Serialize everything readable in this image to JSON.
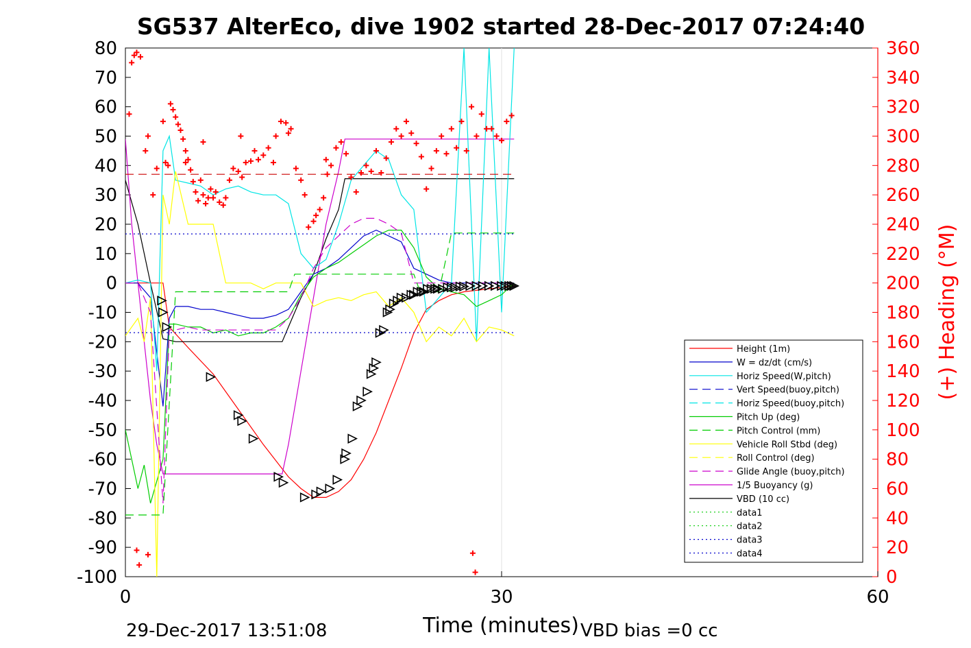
{
  "chart_data": {
    "type": "line",
    "title": "SG537 AlterEco, dive 1902 started 28-Dec-2017 07:24:40",
    "xlabel": "Time (minutes)",
    "ylabel_right": "(+) Heading (°M)",
    "xlim": [
      0,
      60
    ],
    "ylim": [
      -100,
      80
    ],
    "ylim_right": [
      0,
      360
    ],
    "xticks": [
      "0",
      "30",
      "60"
    ],
    "yticks": [
      "80",
      "70",
      "60",
      "50",
      "40",
      "30",
      "20",
      "10",
      "0",
      "-10",
      "-20",
      "-30",
      "-40",
      "-50",
      "-60",
      "-70",
      "-80",
      "-90",
      "-100"
    ],
    "yticks_right": [
      "360",
      "340",
      "320",
      "300",
      "280",
      "260",
      "240",
      "220",
      "200",
      "180",
      "160",
      "140",
      "120",
      "100",
      "80",
      "60",
      "40",
      "20",
      "0"
    ],
    "grid": "x at 30",
    "legend_position": "lower-right",
    "footer_left": "29-Dec-2017 13:51:08",
    "footer_right": "VBD bias =0 cc",
    "colors": {
      "height": "#ff0000",
      "w": "#0000cc",
      "horiz": "#00e5e5",
      "pitch": "#00cc00",
      "roll": "#ffff00",
      "glide": "#cc00cc",
      "buoy": "#cc00cc",
      "vbd": "#000000",
      "heading": "#ff0000",
      "axis_right": "#ff0000"
    },
    "legend": [
      {
        "label": "Height (1m)",
        "color": "#ff0000",
        "dash": "solid"
      },
      {
        "label": "W = dz/dt (cm/s)",
        "color": "#0000cc",
        "dash": "solid"
      },
      {
        "label": "Horiz Speed(W,pitch)",
        "color": "#00e5e5",
        "dash": "solid"
      },
      {
        "label": "Vert Speed(buoy,pitch)",
        "color": "#0000cc",
        "dash": "dashed"
      },
      {
        "label": "Horiz Speed(buoy,pitch)",
        "color": "#00e5e5",
        "dash": "dashed"
      },
      {
        "label": "Pitch Up (deg)",
        "color": "#00cc00",
        "dash": "solid"
      },
      {
        "label": "Pitch Control (mm)",
        "color": "#00cc00",
        "dash": "dashed"
      },
      {
        "label": "Vehicle Roll Stbd (deg)",
        "color": "#ffff00",
        "dash": "solid"
      },
      {
        "label": "Roll Control (deg)",
        "color": "#ffff00",
        "dash": "dashed"
      },
      {
        "label": "Glide Angle (buoy,pitch)",
        "color": "#cc00cc",
        "dash": "dashed"
      },
      {
        "label": "1/5 Buoyancy (g)",
        "color": "#cc00cc",
        "dash": "solid"
      },
      {
        "label": "VBD (10 cc)",
        "color": "#000000",
        "dash": "solid"
      },
      {
        "label": "data1",
        "color": "#00cc00",
        "dash": "dotted"
      },
      {
        "label": "data2",
        "color": "#00cc00",
        "dash": "dotted"
      },
      {
        "label": "data3",
        "color": "#0000cc",
        "dash": "dotted"
      },
      {
        "label": "data4",
        "color": "#0000cc",
        "dash": "dotted"
      }
    ],
    "series": [
      {
        "key": "height",
        "name": "Height (1m)",
        "dash": "solid",
        "x": [
          0,
          1,
          2,
          3,
          3.5,
          5,
          7,
          9,
          11,
          13,
          14,
          15,
          16,
          17,
          18,
          19,
          20,
          21,
          22,
          23,
          24,
          25,
          26,
          27,
          28,
          29,
          30,
          31
        ],
        "y": [
          0,
          0,
          0,
          0,
          -15,
          -22,
          -31,
          -43,
          -55,
          -66,
          -70,
          -73,
          -73,
          -71,
          -67,
          -60,
          -51,
          -40,
          -29,
          -17,
          -9,
          -6,
          -4,
          -3,
          -2.5,
          -2,
          -1.5,
          -1
        ]
      },
      {
        "key": "vbd",
        "name": "VBD (10 cc)",
        "dash": "solid",
        "x": [
          0,
          1,
          2,
          3,
          4,
          5,
          10,
          12.5,
          13,
          14,
          15,
          16,
          17,
          17.5,
          25,
          30,
          31
        ],
        "y": [
          35,
          20,
          0,
          -19,
          -20,
          -20,
          -20,
          -20,
          -15,
          -5,
          3,
          15,
          25,
          35.5,
          35.5,
          35.5,
          35.5
        ]
      },
      {
        "key": "buoy",
        "name": "1/5 Buoyancy (g)",
        "dash": "solid",
        "x": [
          0,
          0.5,
          1,
          1.5,
          2,
          2.5,
          3,
          3.3,
          4,
          10,
          12.5,
          13,
          14,
          15,
          16,
          17,
          17.5,
          24,
          30,
          31
        ],
        "y": [
          49,
          20,
          0,
          -20,
          -40,
          -55,
          -65,
          -65,
          -65,
          -65,
          -65,
          -55,
          -30,
          -5,
          20,
          38,
          49,
          49,
          49,
          49
        ]
      },
      {
        "key": "w",
        "name": "W = dz/dt (cm/s)",
        "dash": "solid",
        "x": [
          0,
          1,
          2,
          3,
          3.5,
          4,
          5,
          6,
          7,
          8,
          9,
          10,
          11,
          12,
          13,
          14,
          15,
          16,
          17,
          18,
          19,
          20,
          21,
          22,
          23,
          24,
          25,
          26,
          27,
          28,
          29,
          30,
          31
        ],
        "y": [
          0,
          0,
          -5,
          -42,
          -12,
          -8,
          -8,
          -9,
          -9,
          -10,
          -11,
          -12,
          -12,
          -11,
          -9,
          -3,
          3,
          5,
          8,
          12,
          16,
          18,
          16,
          14,
          5,
          3,
          1,
          0,
          0,
          0,
          0,
          0,
          0
        ]
      },
      {
        "key": "horiz",
        "name": "Horiz Speed(W,pitch)",
        "dash": "solid",
        "x": [
          0,
          1,
          2,
          2.5,
          3,
          3.5,
          4,
          5,
          6,
          7,
          8,
          9,
          10,
          11,
          12,
          13,
          14,
          15,
          16,
          17,
          18,
          19,
          20,
          21,
          22,
          23,
          24,
          25,
          26,
          27,
          28,
          29,
          30,
          31
        ],
        "y": [
          0,
          1,
          0,
          -30,
          45,
          50,
          35,
          34,
          33,
          30,
          32,
          33,
          31,
          30,
          30,
          27,
          10,
          5,
          8,
          20,
          35,
          40,
          45,
          42,
          30,
          25,
          -10,
          -5,
          0,
          80,
          -20,
          80,
          -10,
          80
        ]
      },
      {
        "key": "pitch",
        "name": "Pitch Up (deg)",
        "dash": "solid",
        "x": [
          0,
          1,
          1.5,
          2,
          3,
          3.5,
          4,
          5,
          6,
          7,
          8,
          9,
          10,
          11,
          12,
          13,
          14,
          15,
          16,
          17,
          18,
          19,
          20,
          21,
          22,
          23,
          24,
          25,
          26,
          27,
          28,
          29,
          30,
          31
        ],
        "y": [
          -50,
          -70,
          -62,
          -75,
          -60,
          -14,
          -14,
          -15,
          -15,
          -17,
          -16,
          -18,
          -17,
          -17,
          -15,
          -12,
          -4,
          2,
          5,
          7,
          10,
          13,
          16,
          18,
          18,
          12,
          2,
          -2,
          -3,
          -4,
          -8,
          -6,
          -4,
          0
        ]
      },
      {
        "key": "roll",
        "name": "Vehicle Roll Stbd (deg)",
        "dash": "solid",
        "x": [
          0,
          1,
          1.5,
          2,
          2.5,
          3,
          3.5,
          4,
          5,
          6,
          7,
          8,
          9,
          10,
          11,
          12,
          13,
          14,
          15,
          16,
          17,
          18,
          19,
          20,
          21,
          22,
          23,
          24,
          25,
          26,
          27,
          28,
          29,
          30,
          31
        ],
        "y": [
          -18,
          -12,
          -20,
          -5,
          -100,
          30,
          20,
          38,
          20,
          20,
          20,
          0,
          0,
          0,
          -2,
          0,
          0,
          0,
          -8,
          -6,
          -5,
          -6,
          -4,
          -3,
          -8,
          -5,
          -10,
          -20,
          -15,
          -18,
          -12,
          -20,
          -15,
          -16,
          -18
        ]
      },
      {
        "key": "glide",
        "name": "Glide Angle (buoy,pitch)",
        "dash": "dashed",
        "x": [
          0,
          1,
          2,
          3,
          3.5,
          4,
          5,
          6,
          7,
          8,
          9,
          10,
          11,
          12,
          13,
          14,
          15,
          16,
          17,
          18,
          19,
          20,
          21,
          22,
          23,
          24,
          25,
          26,
          27,
          28,
          29,
          30,
          31
        ],
        "y": [
          0,
          0,
          -10,
          -75,
          -16,
          -16,
          -15,
          -16,
          -16,
          -16,
          -16,
          -16,
          -16,
          -16,
          -12,
          -5,
          5,
          12,
          16,
          20,
          22,
          22,
          20,
          17,
          0,
          0,
          0,
          0,
          0,
          0,
          0,
          0,
          0
        ]
      },
      {
        "key": "pitchctl",
        "name": "Pitch Control (mm)",
        "dash": "dashed",
        "x": [
          0,
          1,
          2,
          3,
          4,
          5,
          10,
          13,
          13.5,
          17,
          18,
          20,
          23,
          23.5,
          25,
          26,
          31
        ],
        "y": [
          -79,
          -79,
          -79,
          -79,
          -3,
          -3,
          -3,
          -3,
          3,
          3,
          3,
          3,
          3,
          -3,
          -3,
          17,
          17
        ]
      },
      {
        "key": "data3",
        "name": "data3",
        "dash": "dotted",
        "x": [
          0,
          31
        ],
        "y": [
          16.7,
          16.7
        ]
      },
      {
        "key": "data4",
        "name": "data4",
        "dash": "dotted",
        "x": [
          0,
          31
        ],
        "y": [
          -16.9,
          -16.9
        ]
      },
      {
        "key": "hdgref",
        "name": "",
        "dash": "dashed",
        "x": [
          0,
          31
        ],
        "y": [
          37,
          37
        ]
      }
    ],
    "heading_points": {
      "x": [
        0.3,
        0.5,
        0.7,
        0.9,
        1.2,
        1.6,
        1.8,
        2.2,
        2.5,
        3,
        3.2,
        3.4,
        3.6,
        3.8,
        4,
        4.2,
        4.4,
        4.6,
        4.8,
        5,
        5.2,
        5.4,
        5.6,
        5.8,
        6,
        6.2,
        6.4,
        6.6,
        6.8,
        7,
        7.2,
        7.5,
        7.8,
        8,
        8.3,
        8.6,
        9,
        9.3,
        9.6,
        10,
        10.3,
        10.6,
        11,
        11.4,
        11.8,
        12,
        12.4,
        12.8,
        13.2,
        13.6,
        14,
        14.3,
        14.6,
        15,
        15.2,
        15.5,
        15.8,
        16.1,
        16.4,
        16.8,
        17.2,
        17.6,
        18,
        18.4,
        18.8,
        19.2,
        19.6,
        20,
        20.4,
        20.8,
        21.2,
        21.6,
        22,
        22.4,
        22.8,
        23.2,
        23.6,
        24,
        24.4,
        24.8,
        25.2,
        25.6,
        26,
        26.4,
        26.8,
        27.2,
        27.6,
        28,
        28.4,
        28.8,
        29.2,
        29.6,
        30,
        30.4,
        30.8,
        0.9,
        1.1,
        1.8,
        27.7,
        27.9,
        4.8,
        6.2,
        9.2,
        13,
        16
      ],
      "y": [
        315,
        350,
        355,
        357,
        354,
        290,
        300,
        260,
        278,
        310,
        282,
        280,
        322,
        318,
        313,
        308,
        304,
        298,
        290,
        284,
        277,
        269,
        262,
        256,
        270,
        260,
        254,
        258,
        264,
        258,
        262,
        255,
        253,
        258,
        270,
        278,
        276,
        272,
        282,
        283,
        290,
        284,
        287,
        292,
        282,
        300,
        310,
        309,
        305,
        278,
        270,
        260,
        238,
        242,
        246,
        250,
        258,
        274,
        280,
        292,
        296,
        288,
        272,
        262,
        275,
        280,
        276,
        290,
        275,
        285,
        296,
        305,
        300,
        310,
        302,
        295,
        286,
        264,
        278,
        290,
        300,
        288,
        305,
        292,
        310,
        290,
        320,
        300,
        315,
        305,
        305,
        300,
        297,
        310,
        314,
        18,
        8,
        15,
        16,
        3,
        282,
        296,
        300,
        302,
        284
      ]
    },
    "triangle_points": {
      "x": [
        2.9,
        3.0,
        3.3,
        6.8,
        9.0,
        9.3,
        10.2,
        12.2,
        12.6,
        14.3,
        15.2,
        15.6,
        16.3,
        16.9,
        17.5,
        17.6,
        18.1,
        18.5,
        18.8,
        19.3,
        19.6,
        19.8,
        20.0,
        20.3,
        20.6,
        20.9,
        21.1,
        21.4,
        21.7,
        22.0,
        22.4,
        22.8,
        23.0,
        23.3,
        23.6,
        23.8,
        24.1,
        24.4,
        24.7,
        24.9,
        25.3,
        25.7,
        26.0,
        26.3,
        26.7,
        27.0,
        27.5,
        28.0,
        28.5,
        29.0,
        29.5,
        30.0,
        30.3,
        30.6,
        30.8,
        31.0
      ],
      "y": [
        -6,
        -10,
        -15,
        -32,
        -45,
        -47,
        -53,
        -66,
        -68,
        -73,
        -72,
        -71,
        -70,
        -67,
        -60,
        -58,
        -53,
        -42,
        -40,
        -37,
        -31,
        -29,
        -27,
        -17,
        -16,
        -10,
        -9,
        -7,
        -6,
        -5,
        -5,
        -4,
        -4,
        -3,
        -3,
        -3,
        -2,
        -2,
        -2,
        -2,
        -2,
        -1.5,
        -1.5,
        -1.5,
        -1.2,
        -1.2,
        -1,
        -1,
        -1,
        -1,
        -1,
        -1,
        -1,
        -1,
        -1,
        -1
      ]
    }
  }
}
